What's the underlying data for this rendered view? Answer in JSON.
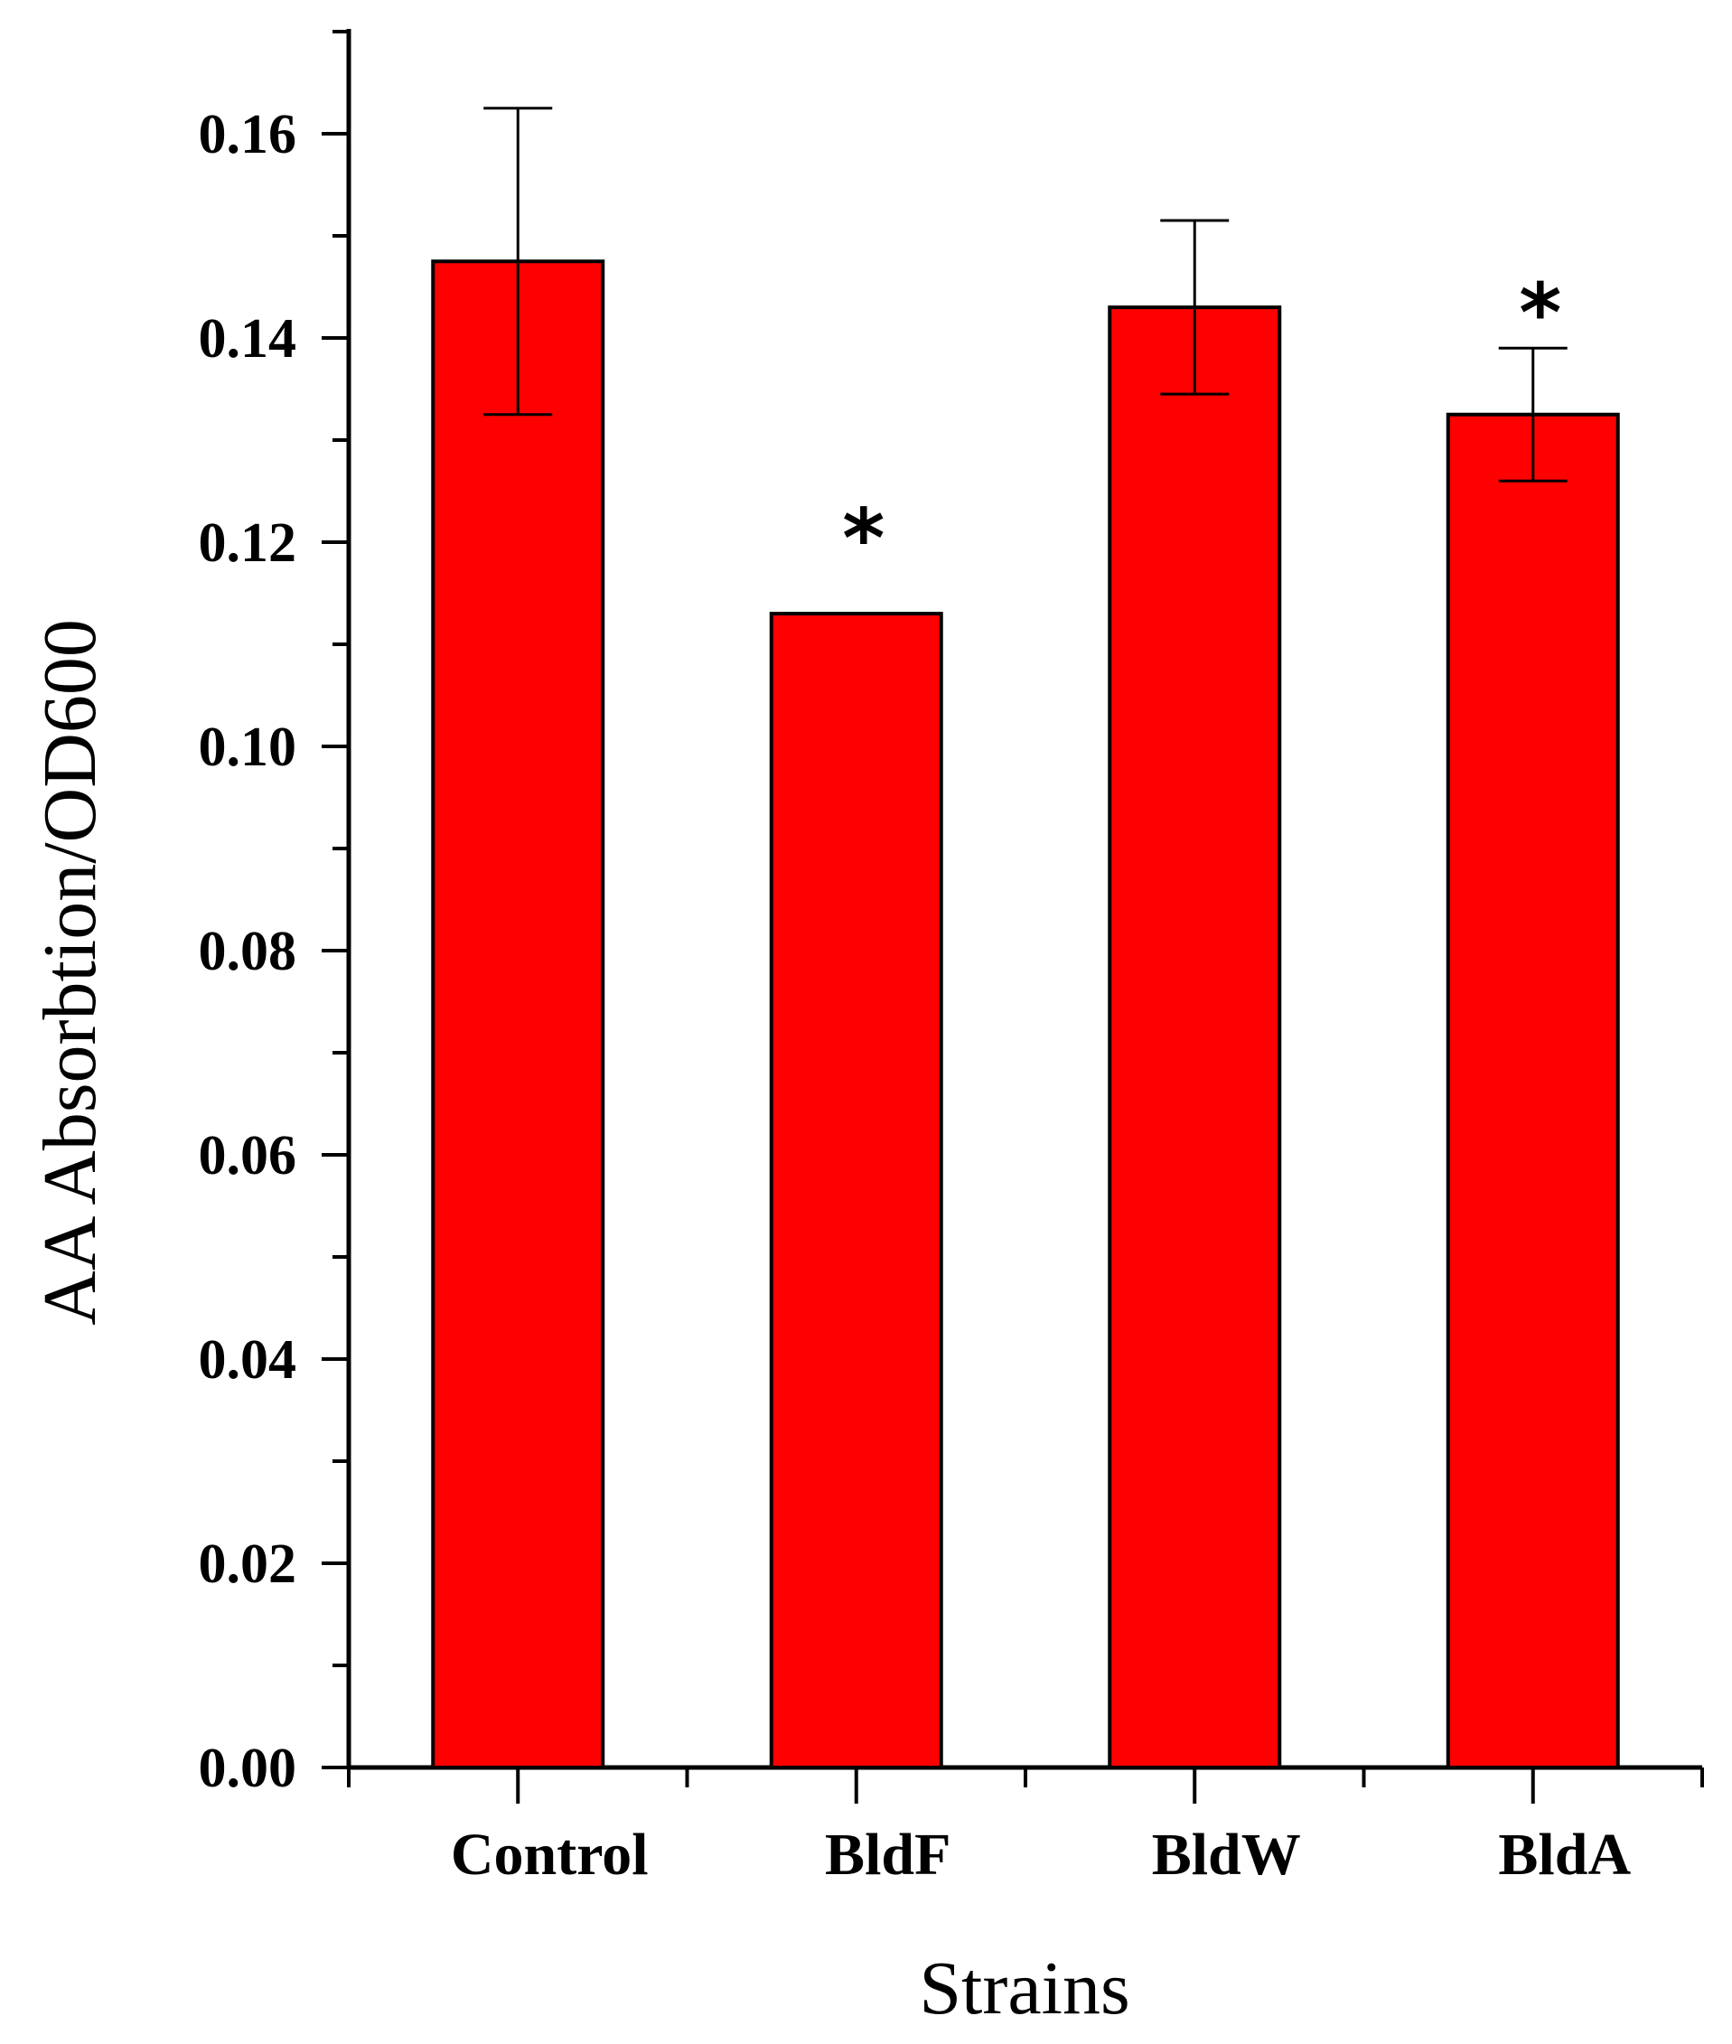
{
  "chart_data": {
    "type": "bar",
    "title": "",
    "xlabel": "Strains",
    "ylabel": "AA Absorbtion/OD600",
    "categories": [
      "Control",
      "BldF",
      "BldW",
      "BldA"
    ],
    "series": [
      {
        "name": "AA Absorbtion/OD600",
        "values": [
          0.1475,
          0.113,
          0.143,
          0.1325
        ],
        "errors": [
          0.015,
          0,
          0.0085,
          0.0065
        ],
        "significance": [
          "",
          "*",
          "",
          "*"
        ],
        "color": "#ff0000"
      }
    ],
    "ylim": [
      0,
      0.17
    ],
    "yticks": [
      0.0,
      0.02,
      0.04,
      0.06,
      0.08,
      0.1,
      0.12,
      0.14,
      0.16
    ],
    "ytick_labels": [
      "0.00",
      "0.02",
      "0.04",
      "0.06",
      "0.08",
      "0.10",
      "0.12",
      "0.14",
      "0.16"
    ],
    "yminor_step": 0.01,
    "grid": false,
    "legend": "none"
  }
}
